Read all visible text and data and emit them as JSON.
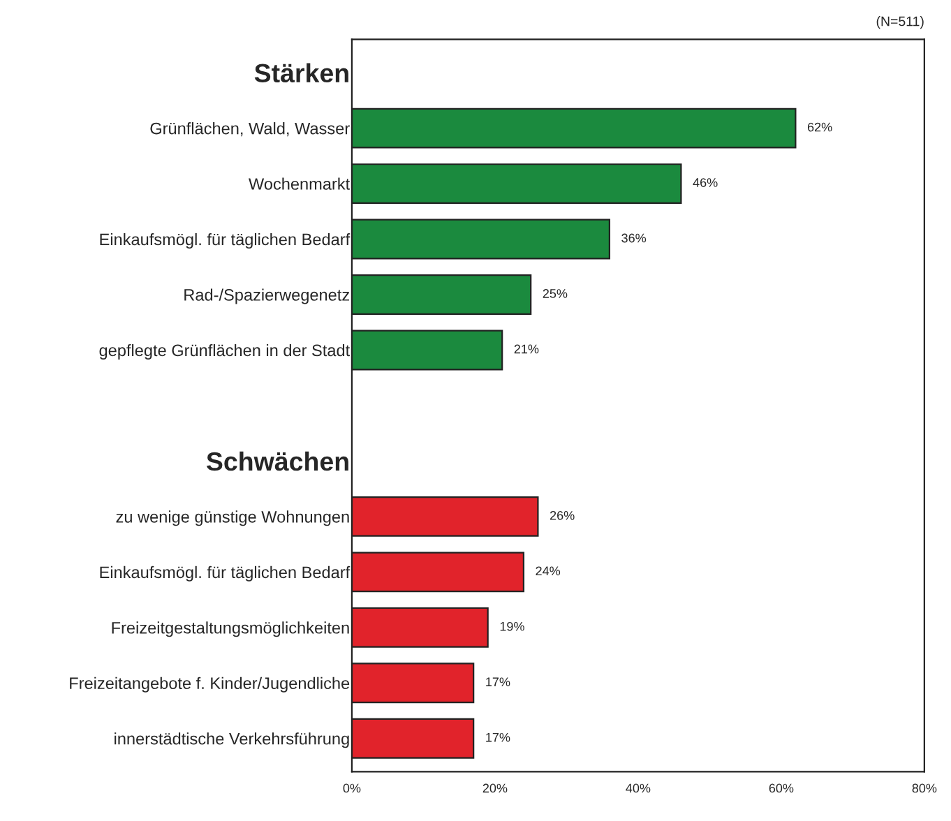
{
  "chart_data": {
    "type": "bar",
    "orientation": "horizontal",
    "annotations": [
      "(N=511)"
    ],
    "categories": [
      "Stärken",
      "Grünflächen, Wald, Wasser",
      "Wochenmarkt",
      "Einkaufsmögl. für täglichen Bedarf",
      "Rad-/Spazierwegenetz",
      "gepflegte Grünflächen in der Stadt",
      null,
      "Schwächen",
      "zu wenige günstige Wohnungen",
      "Einkaufsmögl. für täglichen Bedarf",
      "Freizeitgestaltungsmöglichkeiten",
      "Freizeitangebote f. Kinder/Jugendliche",
      "innerstädtische Verkehrsführung"
    ],
    "series": [
      {
        "color": "#1b8a3e",
        "values": [
          null,
          62,
          46,
          36,
          25,
          21,
          null,
          null,
          null,
          null,
          null,
          null,
          null
        ],
        "value_labels": [
          null,
          "62%",
          "46%",
          "36%",
          "25%",
          "21%",
          null,
          null,
          null,
          null,
          null,
          null,
          null
        ]
      },
      {
        "color": "#e1232b",
        "values": [
          null,
          null,
          null,
          null,
          null,
          null,
          null,
          null,
          26,
          24,
          19,
          17,
          17
        ],
        "value_labels": [
          null,
          null,
          null,
          null,
          null,
          null,
          null,
          null,
          "26%",
          "24%",
          "19%",
          "17%",
          "17%"
        ]
      }
    ],
    "xlim": [
      0,
      80
    ],
    "xticks": [
      {
        "value": 0,
        "label": "0%"
      },
      {
        "value": 20,
        "label": "20%"
      },
      {
        "value": 40,
        "label": "40%"
      },
      {
        "value": 60,
        "label": "60%"
      },
      {
        "value": 80,
        "label": "80%"
      }
    ],
    "grid": false,
    "legend": false
  }
}
